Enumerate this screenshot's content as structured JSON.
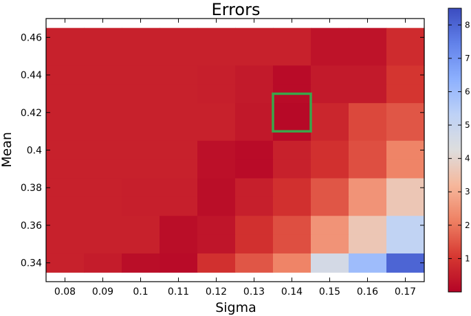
{
  "chart_data": {
    "type": "heatmap",
    "title": "Errors",
    "xlabel": "Sigma",
    "ylabel": "Mean",
    "x_tick_labels": [
      "0.08",
      "0.09",
      "0.1",
      "0.11",
      "0.12",
      "0.13",
      "0.14",
      "0.15",
      "0.16",
      "0.17"
    ],
    "y_tick_labels": [
      "0.34",
      "0.36",
      "0.38",
      "0.4",
      "0.42",
      "0.44",
      "0.46"
    ],
    "x_values": [
      0.08,
      0.09,
      0.1,
      0.11,
      0.12,
      0.13,
      0.14,
      0.15,
      0.16,
      0.17
    ],
    "y_values": [
      0.46,
      0.45,
      0.44,
      0.43,
      0.42,
      0.41,
      0.4,
      0.39,
      0.38,
      0.37,
      0.36,
      0.35,
      0.34
    ],
    "xlim": [
      0.075,
      0.175
    ],
    "ylim": [
      0.33,
      0.47
    ],
    "values": [
      [
        0.6,
        0.6,
        0.6,
        0.6,
        0.6,
        0.6,
        0.6,
        0.3,
        0.3,
        0.8
      ],
      [
        0.6,
        0.6,
        0.6,
        0.6,
        0.6,
        0.6,
        0.6,
        0.3,
        0.3,
        0.8
      ],
      [
        0.6,
        0.6,
        0.6,
        0.6,
        0.55,
        0.45,
        0.15,
        0.45,
        0.45,
        1.0
      ],
      [
        0.6,
        0.6,
        0.6,
        0.6,
        0.55,
        0.45,
        0.15,
        0.45,
        0.45,
        1.0
      ],
      [
        0.6,
        0.6,
        0.6,
        0.6,
        0.6,
        0.4,
        0.1,
        0.7,
        1.3,
        1.5
      ],
      [
        0.6,
        0.6,
        0.6,
        0.6,
        0.6,
        0.4,
        0.1,
        0.7,
        1.3,
        1.5
      ],
      [
        0.6,
        0.6,
        0.6,
        0.6,
        0.25,
        0.15,
        0.6,
        0.9,
        1.4,
        2.2
      ],
      [
        0.6,
        0.6,
        0.6,
        0.6,
        0.25,
        0.15,
        0.6,
        0.9,
        1.4,
        2.2
      ],
      [
        0.6,
        0.6,
        0.55,
        0.55,
        0.2,
        0.55,
        0.9,
        1.5,
        2.5,
        3.6
      ],
      [
        0.6,
        0.6,
        0.55,
        0.55,
        0.2,
        0.55,
        0.9,
        1.5,
        2.5,
        3.6
      ],
      [
        0.6,
        0.6,
        0.6,
        0.2,
        0.35,
        0.9,
        1.4,
        2.5,
        3.6,
        5.2
      ],
      [
        0.6,
        0.6,
        0.6,
        0.2,
        0.35,
        0.9,
        1.4,
        2.5,
        3.6,
        5.2
      ],
      [
        0.6,
        0.5,
        0.2,
        0.15,
        0.9,
        1.5,
        2.2,
        4.6,
        6.0,
        8.0
      ]
    ],
    "colorbar": {
      "min": 0,
      "max": 8.5,
      "ticks": [
        1,
        2,
        3,
        4,
        5,
        6,
        7,
        8
      ],
      "tick_labels": [
        "1",
        "2",
        "3",
        "4",
        "5",
        "6",
        "7",
        "8"
      ],
      "colormap": "coolwarm_r"
    },
    "highlight": {
      "x": 0.14,
      "y": 0.42,
      "color": "#3aa64a"
    },
    "grid": false,
    "legend": "none"
  }
}
